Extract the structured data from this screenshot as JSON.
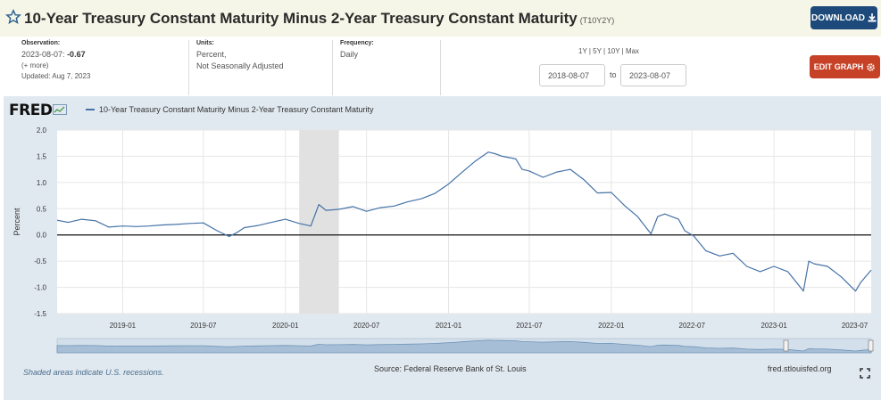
{
  "header": {
    "title": "10-Year Treasury Constant Maturity Minus 2-Year Treasury Constant Maturity",
    "series_id": "(T10Y2Y)",
    "download_label": "DOWNLOAD",
    "star_icon": "star-outline-icon",
    "download_icon": "download-icon"
  },
  "meta": {
    "observation_label": "Observation:",
    "observation_date": "2023-08-07:",
    "observation_value": "-0.67",
    "more_link": "(+ more)",
    "updated": "Updated: Aug 7, 2023",
    "units_label": "Units:",
    "units_line1": "Percent,",
    "units_line2": "Not Seasonally Adjusted",
    "frequency_label": "Frequency:",
    "frequency_value": "Daily",
    "range_links": "1Y | 5Y | 10Y | Max",
    "date_from": "2018-08-07",
    "to_label": "to",
    "date_to": "2023-08-07",
    "edit_label": "EDIT GRAPH",
    "edit_icon": "gear-icon"
  },
  "graph": {
    "logo": "FRED",
    "legend_label": "10-Year Treasury Constant Maturity Minus 2-Year Treasury Constant Maturity",
    "recession_note": "Shaded areas indicate U.S. recessions.",
    "source": "Source: Federal Reserve Bank of St. Louis",
    "site": "fred.stlouisfed.org",
    "fullscreen_icon": "fullscreen-icon"
  },
  "chart_data": {
    "type": "line",
    "title": "",
    "xlabel": "",
    "ylabel": "Percent",
    "xlim": [
      "2018-08-07",
      "2023-08-07"
    ],
    "ylim": [
      -1.5,
      2.0
    ],
    "yticks": [
      "2.0",
      "1.5",
      "1.0",
      "0.5",
      "0.0",
      "-0.5",
      "-1.0",
      "-1.5"
    ],
    "xticks": [
      "2019-01",
      "2019-07",
      "2020-01",
      "2020-07",
      "2021-01",
      "2021-07",
      "2022-01",
      "2022-07",
      "2023-01",
      "2023-07"
    ],
    "recession": [
      "2020-02-01",
      "2020-04-30"
    ],
    "grid": true,
    "series": [
      {
        "color": "#4572a7",
        "x": [
          "2018-08-07",
          "2018-09-01",
          "2018-10-01",
          "2018-11-01",
          "2018-12-01",
          "2019-01-01",
          "2019-02-01",
          "2019-03-01",
          "2019-04-01",
          "2019-05-01",
          "2019-06-01",
          "2019-07-01",
          "2019-08-01",
          "2019-08-28",
          "2019-09-15",
          "2019-10-01",
          "2019-11-01",
          "2019-12-01",
          "2020-01-01",
          "2020-02-01",
          "2020-02-27",
          "2020-03-09",
          "2020-03-16",
          "2020-04-01",
          "2020-05-01",
          "2020-06-01",
          "2020-07-01",
          "2020-08-01",
          "2020-09-01",
          "2020-10-01",
          "2020-11-01",
          "2020-12-01",
          "2021-01-01",
          "2021-02-01",
          "2021-03-01",
          "2021-03-31",
          "2021-04-15",
          "2021-05-01",
          "2021-06-01",
          "2021-06-15",
          "2021-07-01",
          "2021-08-01",
          "2021-09-01",
          "2021-10-01",
          "2021-11-01",
          "2021-12-01",
          "2022-01-01",
          "2022-02-01",
          "2022-03-01",
          "2022-03-31",
          "2022-04-15",
          "2022-05-01",
          "2022-06-01",
          "2022-06-15",
          "2022-07-05",
          "2022-08-01",
          "2022-09-01",
          "2022-10-01",
          "2022-11-01",
          "2022-12-01",
          "2023-01-01",
          "2023-02-01",
          "2023-03-08",
          "2023-03-20",
          "2023-04-01",
          "2023-05-01",
          "2023-06-01",
          "2023-07-03",
          "2023-07-15",
          "2023-08-07"
        ],
        "y": [
          0.28,
          0.24,
          0.3,
          0.27,
          0.15,
          0.17,
          0.16,
          0.17,
          0.19,
          0.2,
          0.22,
          0.23,
          0.08,
          -0.03,
          0.05,
          0.14,
          0.18,
          0.24,
          0.3,
          0.22,
          0.17,
          0.42,
          0.58,
          0.47,
          0.49,
          0.54,
          0.45,
          0.52,
          0.55,
          0.63,
          0.69,
          0.79,
          0.97,
          1.2,
          1.4,
          1.58,
          1.55,
          1.5,
          1.45,
          1.25,
          1.22,
          1.1,
          1.2,
          1.25,
          1.05,
          0.8,
          0.81,
          0.55,
          0.35,
          0.02,
          0.35,
          0.4,
          0.3,
          0.08,
          -0.02,
          -0.3,
          -0.4,
          -0.35,
          -0.6,
          -0.7,
          -0.6,
          -0.7,
          -1.07,
          -0.5,
          -0.55,
          -0.6,
          -0.8,
          -1.07,
          -0.9,
          -0.67
        ]
      }
    ]
  }
}
